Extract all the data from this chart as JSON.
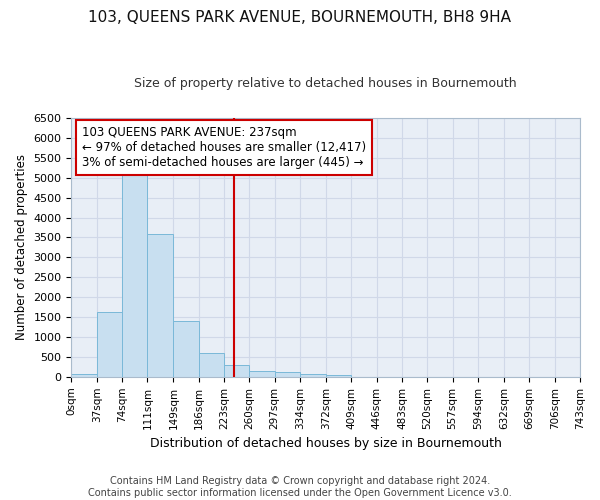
{
  "title": "103, QUEENS PARK AVENUE, BOURNEMOUTH, BH8 9HA",
  "subtitle": "Size of property relative to detached houses in Bournemouth",
  "xlabel": "Distribution of detached houses by size in Bournemouth",
  "ylabel": "Number of detached properties",
  "footer_line1": "Contains HM Land Registry data © Crown copyright and database right 2024.",
  "footer_line2": "Contains public sector information licensed under the Open Government Licence v3.0.",
  "annotation_line1": "103 QUEENS PARK AVENUE: 237sqm",
  "annotation_line2": "← 97% of detached houses are smaller (12,417)",
  "annotation_line3": "3% of semi-detached houses are larger (445) →",
  "bar_color": "#c8dff0",
  "bar_edgecolor": "#7ab8d8",
  "vline_color": "#cc0000",
  "vline_x": 237,
  "bin_edges": [
    0,
    37,
    74,
    111,
    149,
    186,
    223,
    260,
    297,
    334,
    372,
    409,
    446,
    483,
    520,
    557,
    594,
    632,
    669,
    706,
    743
  ],
  "bar_heights": [
    60,
    1640,
    5080,
    3580,
    1400,
    600,
    290,
    145,
    120,
    70,
    50,
    0,
    0,
    0,
    0,
    0,
    0,
    0,
    0,
    0
  ],
  "ylim": [
    0,
    6500
  ],
  "yticks": [
    0,
    500,
    1000,
    1500,
    2000,
    2500,
    3000,
    3500,
    4000,
    4500,
    5000,
    5500,
    6000,
    6500
  ],
  "grid_color": "#d0d8e8",
  "fig_background": "#ffffff",
  "axes_background": "#e8eef6",
  "annotation_box_edgecolor": "#cc0000",
  "annotation_box_facecolor": "#ffffff",
  "title_fontsize": 11,
  "subtitle_fontsize": 9,
  "xlabel_fontsize": 9,
  "ylabel_fontsize": 8.5,
  "xtick_fontsize": 7.5,
  "ytick_fontsize": 8,
  "footer_fontsize": 7,
  "annotation_fontsize": 8.5
}
